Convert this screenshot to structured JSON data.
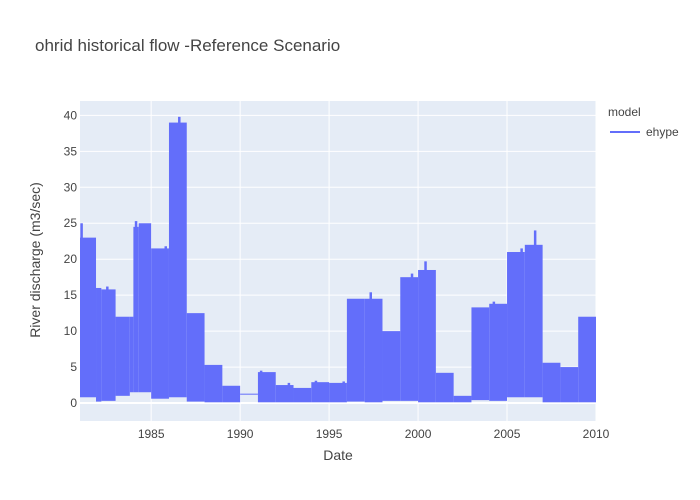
{
  "chart_data": {
    "type": "line",
    "title": "ohrid historical flow -Reference Scenario",
    "xlabel": "Date",
    "ylabel": "River discharge (m3/sec)",
    "xlim": [
      1981.0,
      2010.0
    ],
    "ylim": [
      -2.5,
      42
    ],
    "x_ticks": [
      1985,
      1990,
      1995,
      2000,
      2005,
      2010
    ],
    "y_ticks": [
      0,
      5,
      10,
      15,
      20,
      25,
      30,
      35,
      40
    ],
    "grid": true,
    "legend": {
      "title": "model",
      "placement": "top-right"
    },
    "colors": {
      "plot_bg": "#E5ECF6",
      "grid": "#ffffff",
      "series": "#636EFA"
    },
    "series": [
      {
        "name": "ehype",
        "bands": [
          {
            "start": 1981.0,
            "end": 1981.9,
            "max": 23.0,
            "peak": 25.0,
            "min": 0.8
          },
          {
            "start": 1981.9,
            "end": 1982.2,
            "max": 16.0,
            "min": 0.2
          },
          {
            "start": 1982.2,
            "end": 1983.0,
            "max": 15.8,
            "peak": 16.2,
            "min": 0.3
          },
          {
            "start": 1983.0,
            "end": 1983.8,
            "max": 12.0,
            "min": 1.0
          },
          {
            "start": 1983.8,
            "end": 1984.0,
            "max": 12.0,
            "min": 1.5
          },
          {
            "start": 1984.0,
            "end": 1984.3,
            "max": 24.5,
            "peak": 25.3,
            "min": 1.5
          },
          {
            "start": 1984.3,
            "end": 1985.0,
            "max": 25.0,
            "min": 1.5
          },
          {
            "start": 1985.0,
            "end": 1986.0,
            "max": 21.5,
            "peak": 21.8,
            "min": 0.6
          },
          {
            "start": 1986.0,
            "end": 1987.0,
            "max": 39.0,
            "peak": 39.8,
            "min": 0.8
          },
          {
            "start": 1987.0,
            "end": 1988.0,
            "max": 12.5,
            "min": 0.2
          },
          {
            "start": 1988.0,
            "end": 1989.0,
            "max": 5.3,
            "min": 0.1
          },
          {
            "start": 1989.0,
            "end": 1990.0,
            "max": 2.4,
            "min": 0.1
          },
          {
            "start": 1990.0,
            "end": 1991.0,
            "max": 1.3,
            "min": 1.2
          },
          {
            "start": 1991.0,
            "end": 1992.0,
            "max": 4.3,
            "peak": 4.5,
            "min": 0.1
          },
          {
            "start": 1992.0,
            "end": 1993.0,
            "max": 2.5,
            "peak": 2.8,
            "min": 0.1
          },
          {
            "start": 1993.0,
            "end": 1994.0,
            "max": 2.1,
            "min": 0.1
          },
          {
            "start": 1994.0,
            "end": 1995.0,
            "max": 2.9,
            "peak": 3.1,
            "min": 0.1
          },
          {
            "start": 1995.0,
            "end": 1996.0,
            "max": 2.8,
            "peak": 3.0,
            "min": 0.1
          },
          {
            "start": 1996.0,
            "end": 1997.0,
            "max": 14.5,
            "min": 0.2
          },
          {
            "start": 1997.0,
            "end": 1998.0,
            "max": 14.5,
            "peak": 15.4,
            "min": 0.1
          },
          {
            "start": 1998.0,
            "end": 1999.0,
            "max": 10.0,
            "min": 0.3
          },
          {
            "start": 1999.0,
            "end": 2000.0,
            "max": 17.5,
            "peak": 18.0,
            "min": 0.3
          },
          {
            "start": 2000.0,
            "end": 2001.0,
            "max": 18.5,
            "peak": 19.7,
            "min": 0.1
          },
          {
            "start": 2001.0,
            "end": 2002.0,
            "max": 4.2,
            "min": 0.1
          },
          {
            "start": 2002.0,
            "end": 2003.0,
            "max": 1.0,
            "min": 0.1
          },
          {
            "start": 2003.0,
            "end": 2004.0,
            "max": 13.3,
            "min": 0.4
          },
          {
            "start": 2004.0,
            "end": 2005.0,
            "max": 13.8,
            "peak": 14.1,
            "min": 0.3
          },
          {
            "start": 2005.0,
            "end": 2006.0,
            "max": 21.0,
            "peak": 21.5,
            "min": 0.8
          },
          {
            "start": 2006.0,
            "end": 2007.0,
            "max": 22.0,
            "peak": 24.0,
            "min": 0.8
          },
          {
            "start": 2007.0,
            "end": 2008.0,
            "max": 5.6,
            "min": 0.1
          },
          {
            "start": 2008.0,
            "end": 2009.0,
            "max": 5.0,
            "min": 0.1
          },
          {
            "start": 2009.0,
            "end": 2010.0,
            "max": 12.0,
            "min": 0.1
          }
        ]
      }
    ]
  }
}
